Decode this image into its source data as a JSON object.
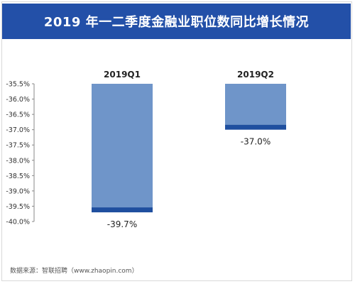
{
  "title": "2019 年一二季度金融业职位数同比增长情况",
  "source": "数据来源：智联招聘（www.zhaopin.com）",
  "colors": {
    "title_bg": "#2350a8",
    "bar_fill": "#6f95c9",
    "bar_cap": "#1f4f9f",
    "axis_text": "#333333"
  },
  "chart_data": {
    "type": "bar",
    "categories": [
      "2019Q1",
      "2019Q2"
    ],
    "values": [
      -39.7,
      -37.0
    ],
    "value_labels": [
      "-39.7%",
      "-37.0%"
    ],
    "ylim": [
      -40.0,
      -35.5
    ],
    "yticks": [
      -35.5,
      -36.0,
      -36.5,
      -37.0,
      -37.5,
      -38.0,
      -38.5,
      -39.0,
      -39.5,
      -40.0
    ],
    "ytick_labels": [
      "-35.5%",
      "-36.0%",
      "-36.5%",
      "-37.0%",
      "-37.5%",
      "-38.0%",
      "-38.5%",
      "-39.0%",
      "-39.5%",
      "-40.0%"
    ],
    "grid": false,
    "legend": "none"
  }
}
